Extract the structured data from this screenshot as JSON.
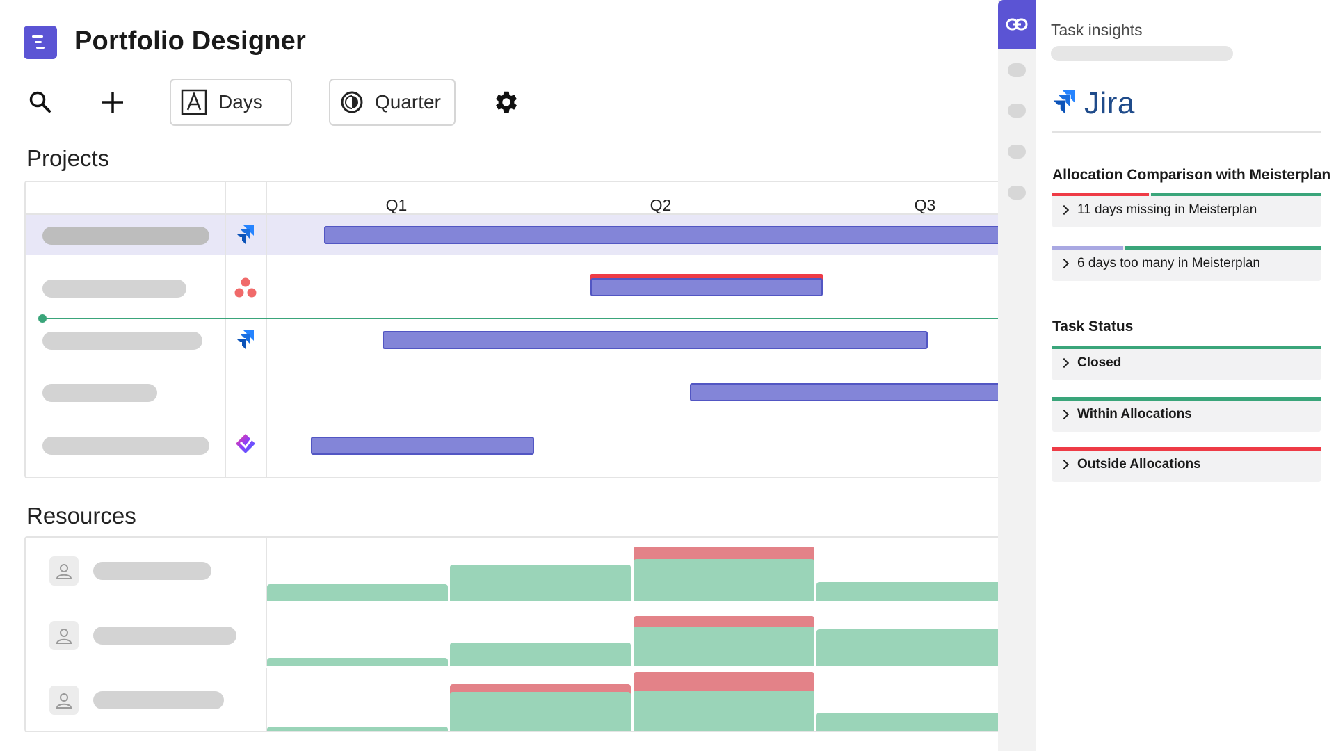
{
  "app": {
    "title": "Portfolio Designer",
    "icon": "portfolio-designer-logo-icon",
    "accent_color": "#5b54d4"
  },
  "toolbar": {
    "search_icon": "search-icon",
    "add_icon": "plus-icon",
    "unit_button": {
      "icon": "letter-a-box-icon",
      "label": "Days"
    },
    "period_button": {
      "icon": "half-circle-icon",
      "label": "Quarter"
    },
    "settings_icon": "gear-icon"
  },
  "projects": {
    "heading": "Projects",
    "quarters": [
      "Q1",
      "Q2",
      "Q3"
    ],
    "rows": [
      {
        "source_icon": "jira-icon",
        "selected": true
      },
      {
        "source_icon": "asana-icon",
        "selected": false,
        "over_allocated": true
      },
      {
        "source_icon": "jira-icon",
        "selected": false
      },
      {
        "source_icon": "",
        "selected": false
      },
      {
        "source_icon": "clickup-icon",
        "selected": false
      }
    ],
    "colors": {
      "bar": "#8385d8",
      "bar_border": "#5256c3",
      "over": "#ee3b46",
      "milestone": "#3aa57a"
    }
  },
  "resources": {
    "heading": "Resources",
    "rows": [
      {
        "avatar_icon": "user-icon"
      },
      {
        "avatar_icon": "user-icon"
      },
      {
        "avatar_icon": "user-icon"
      }
    ],
    "colors": {
      "capacity": "#9ad4b8",
      "overload": "#e38288"
    }
  },
  "insights": {
    "active_tab_icon": "link-icon",
    "title": "Task insights",
    "integration": {
      "icon": "jira-icon",
      "name": "Jira"
    },
    "allocation": {
      "heading": "Allocation Comparison with Meisterplan",
      "items": [
        {
          "label": "11 days missing in Meisterplan"
        },
        {
          "label": "6 days too many in Meisterplan"
        }
      ]
    },
    "status": {
      "heading": "Task Status",
      "items": [
        {
          "label": "Closed",
          "color": "#3aa57a"
        },
        {
          "label": "Within Allocations",
          "color": "#3aa57a"
        },
        {
          "label": "Outside Allocations",
          "color": "#ee3b46"
        }
      ]
    }
  }
}
